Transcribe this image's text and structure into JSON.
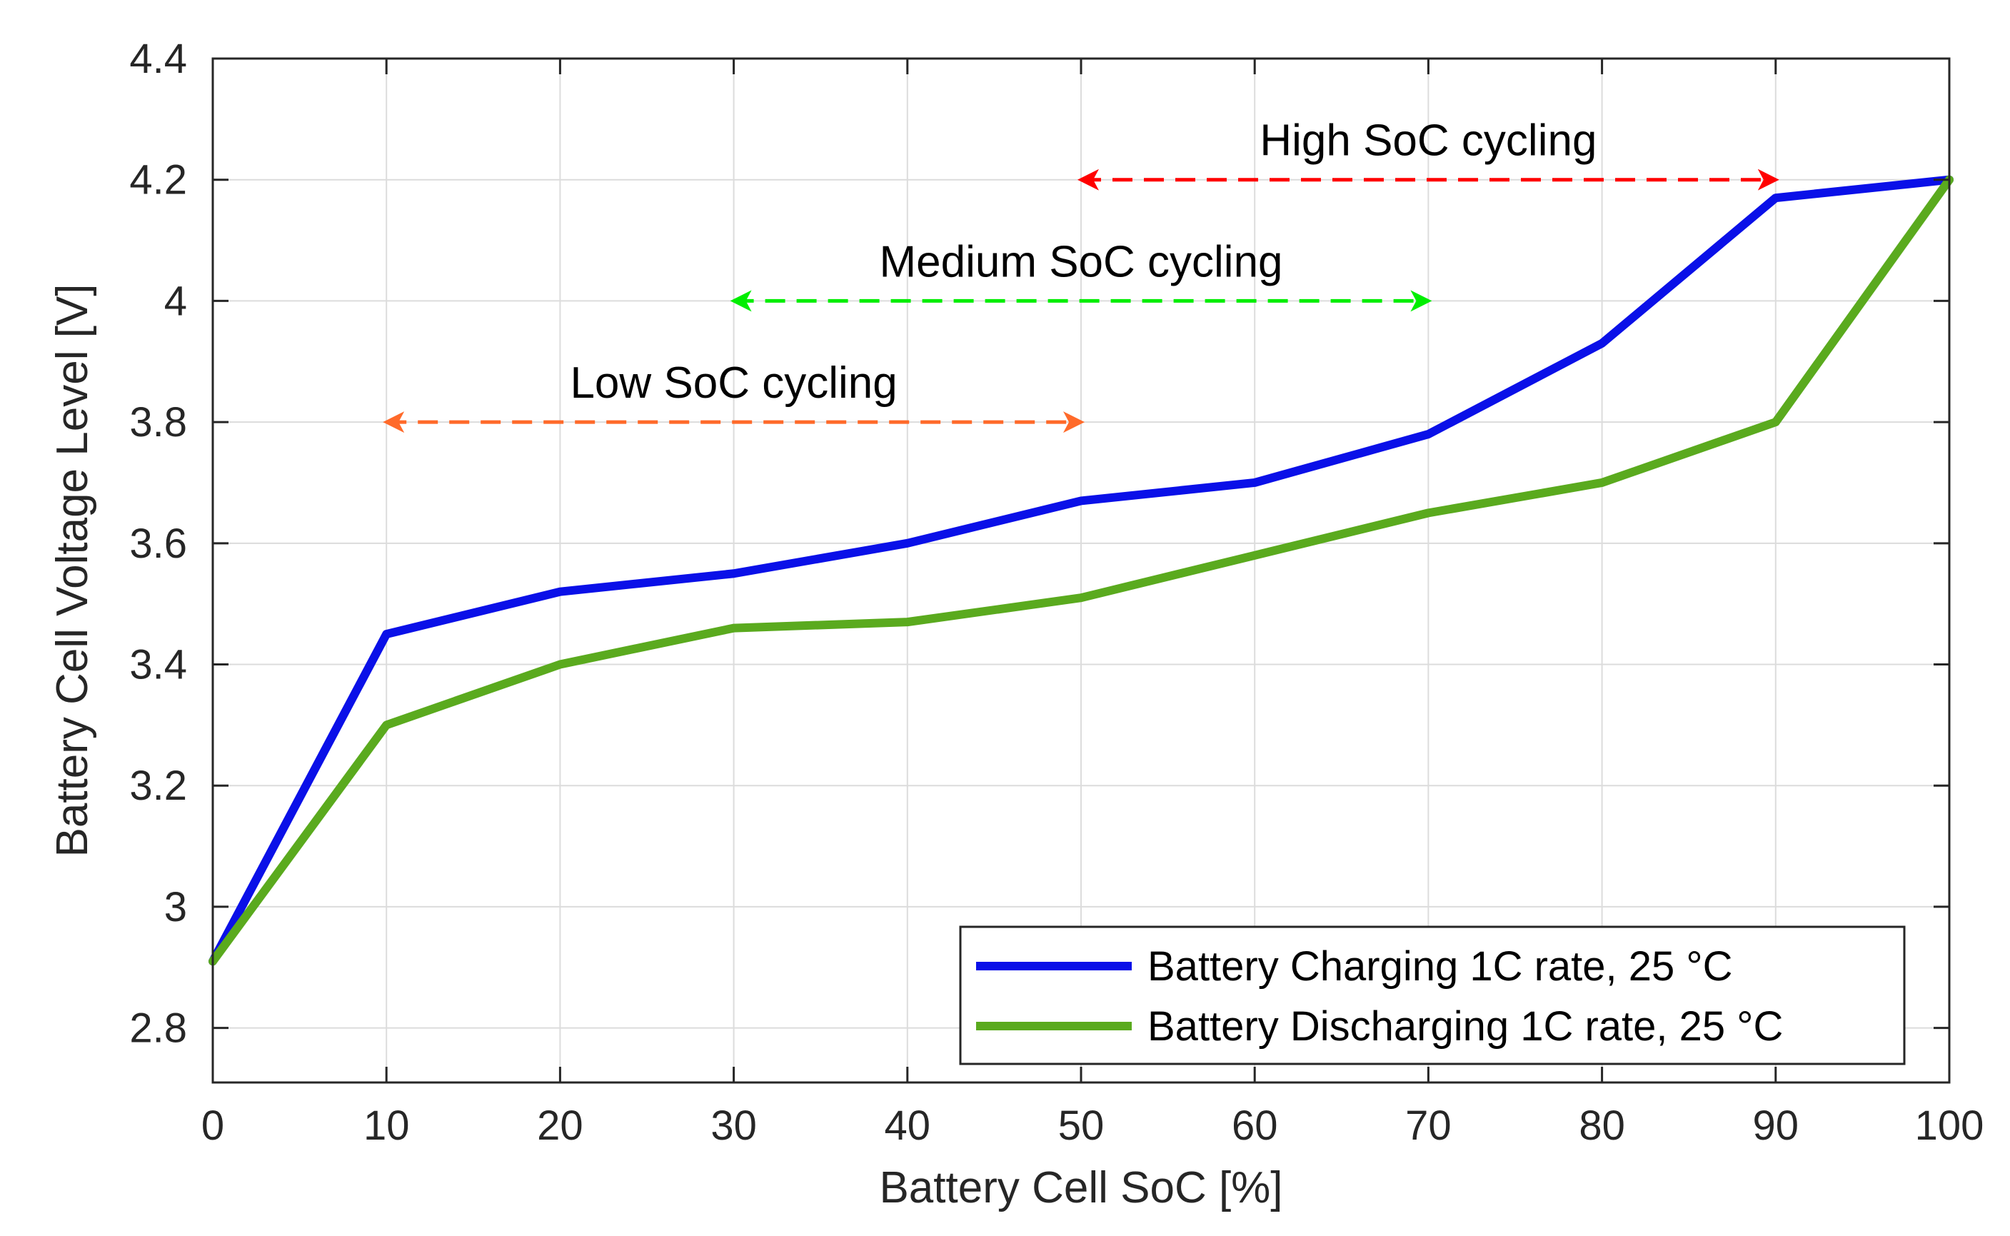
{
  "chart_data": {
    "type": "line",
    "xlabel": "Battery Cell SoC [%]",
    "ylabel": "Battery Cell Voltage Level [V]",
    "xlim": [
      0,
      100
    ],
    "ylim": [
      2.71,
      4.4
    ],
    "xticks": [
      0,
      10,
      20,
      30,
      40,
      50,
      60,
      70,
      80,
      90,
      100
    ],
    "yticks": [
      2.8,
      3,
      3.2,
      3.4,
      3.6,
      3.8,
      4,
      4.2,
      4.4
    ],
    "xtick_labels": [
      "0",
      "10",
      "20",
      "30",
      "40",
      "50",
      "60",
      "70",
      "80",
      "90",
      "100"
    ],
    "ytick_labels": [
      "2.8",
      "3",
      "3.2",
      "3.4",
      "3.6",
      "3.8",
      "4",
      "4.2",
      "4.4"
    ],
    "grid": true,
    "legend_position": "bottom-right",
    "x": [
      0,
      10,
      20,
      30,
      40,
      50,
      60,
      70,
      80,
      90,
      100
    ],
    "series": [
      {
        "name": "Battery Charging 1C rate, 25 °C",
        "color": "#0a10e8",
        "values": [
          2.91,
          3.45,
          3.52,
          3.55,
          3.6,
          3.67,
          3.7,
          3.78,
          3.93,
          4.17,
          4.2
        ]
      },
      {
        "name": "Battery Discharging 1C rate, 25 °C",
        "color": "#5aaa1e",
        "values": [
          2.91,
          3.3,
          3.4,
          3.46,
          3.47,
          3.51,
          3.58,
          3.65,
          3.7,
          3.8,
          4.2
        ]
      }
    ],
    "annotations": [
      {
        "label": "High SoC cycling",
        "x_start": 50,
        "x_end": 90,
        "y": 4.2,
        "color": "#ff0000"
      },
      {
        "label": "Medium SoC cycling",
        "x_start": 30,
        "x_end": 70,
        "y": 4.0,
        "color": "#00ee00"
      },
      {
        "label": "Low SoC cycling",
        "x_start": 10,
        "x_end": 50,
        "y": 3.8,
        "color": "#ff6a2a"
      }
    ]
  }
}
